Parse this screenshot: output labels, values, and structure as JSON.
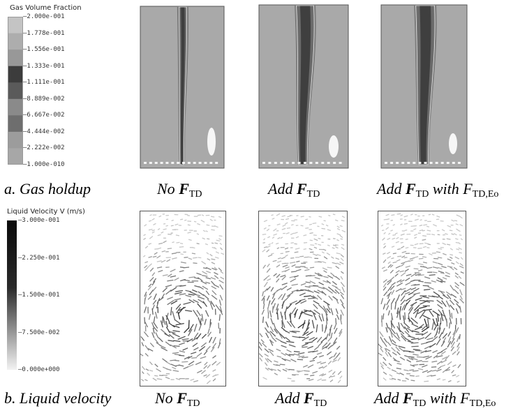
{
  "legend_top": {
    "title": "Gas Volume Fraction",
    "ticks": [
      "2.000e-001",
      "1.778e-001",
      "1.556e-001",
      "1.333e-001",
      "1.111e-001",
      "8.889e-002",
      "6.667e-002",
      "4.444e-002",
      "2.222e-002",
      "1.000e-010"
    ],
    "colors": [
      "#c4c4c4",
      "#adadad",
      "#989898",
      "#3c3c3c",
      "#5a5a5a",
      "#8a8a8a",
      "#6e6e6e",
      "#9c9c9c",
      "#a7a7a7",
      "#b6b6b6"
    ]
  },
  "legend_bottom": {
    "title": "Liquid Velocity V (m/s)",
    "ticks": [
      "3.000e-001",
      "2.250e-001",
      "1.500e-001",
      "7.500e-002",
      "0.000e+000"
    ]
  },
  "captions": {
    "a_label": "a. Gas holdup",
    "b_label": "b. Liquid velocity",
    "no": "No ",
    "add": "Add ",
    "F": "F",
    "TD": "TD",
    "with": " with ",
    "F_plain": "F",
    "TDEo": "TD,Eo"
  },
  "colors": {
    "bg_gray": "#a9a9a9",
    "plume_dark": "#3f3f3f",
    "plume_mid": "#6a6a6a",
    "vector": "#222222"
  }
}
